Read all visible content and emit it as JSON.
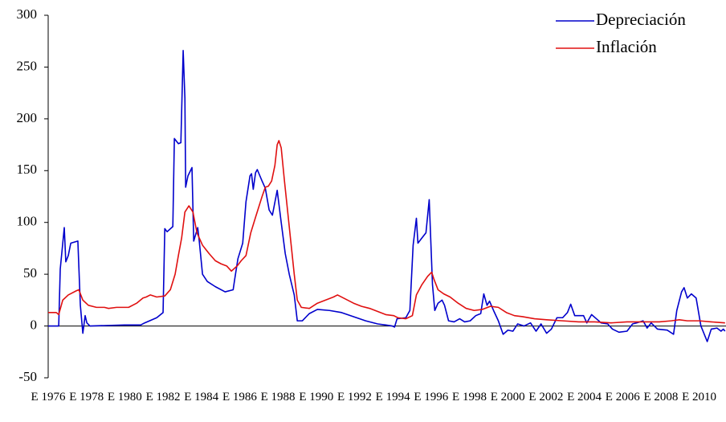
{
  "chart_data": {
    "type": "line",
    "xlim": [
      1976,
      2011.4
    ],
    "ylim": [
      -50,
      300
    ],
    "yticks": [
      -50,
      0,
      50,
      100,
      150,
      200,
      250,
      300
    ],
    "xticks": [
      {
        "value": 1976,
        "label": "E 1976"
      },
      {
        "value": 1978,
        "label": "E 1978"
      },
      {
        "value": 1980,
        "label": "E 1980"
      },
      {
        "value": 1982,
        "label": "E 1982"
      },
      {
        "value": 1984,
        "label": "E 1984"
      },
      {
        "value": 1986,
        "label": "E 1986"
      },
      {
        "value": 1988,
        "label": "E 1988"
      },
      {
        "value": 1990,
        "label": "E 1990"
      },
      {
        "value": 1992,
        "label": "E 1992"
      },
      {
        "value": 1994,
        "label": "E 1994"
      },
      {
        "value": 1996,
        "label": "E 1996"
      },
      {
        "value": 1998,
        "label": "E 1998"
      },
      {
        "value": 2000,
        "label": "E 2000"
      },
      {
        "value": 2002,
        "label": "E 2002"
      },
      {
        "value": 2004,
        "label": "E 2004"
      },
      {
        "value": 2006,
        "label": "E 2006"
      },
      {
        "value": 2008,
        "label": "E 2008"
      },
      {
        "value": 2010,
        "label": "E 2010"
      }
    ],
    "legend": "top-right",
    "series": [
      {
        "name": "Depreciación",
        "color": "#0000cc",
        "x": [
          1976.0,
          1976.55,
          1976.63,
          1976.84,
          1976.92,
          1977.05,
          1977.18,
          1977.55,
          1977.68,
          1977.81,
          1977.93,
          1978.02,
          1978.18,
          1979.99,
          1980.83,
          1981.04,
          1981.67,
          1982.0,
          1982.09,
          1982.21,
          1982.51,
          1982.59,
          1982.8,
          1982.93,
          1983.05,
          1983.14,
          1983.18,
          1983.3,
          1983.51,
          1983.6,
          1983.81,
          1983.89,
          1984.06,
          1984.31,
          1984.73,
          1985.24,
          1985.66,
          1985.74,
          1985.91,
          1986.16,
          1986.33,
          1986.54,
          1986.62,
          1986.71,
          1986.83,
          1986.92,
          1987.17,
          1987.34,
          1987.54,
          1987.71,
          1987.96,
          1988.17,
          1988.38,
          1988.59,
          1988.85,
          1989.01,
          1989.27,
          1989.64,
          1990.06,
          1990.69,
          1991.32,
          1991.95,
          1992.58,
          1993.21,
          1993.63,
          1993.97,
          1994.09,
          1994.22,
          1994.68,
          1994.89,
          1995.06,
          1995.23,
          1995.31,
          1995.52,
          1995.73,
          1995.9,
          1996.07,
          1996.19,
          1996.36,
          1996.57,
          1996.7,
          1996.91,
          1997.2,
          1997.49,
          1997.75,
          1998.04,
          1998.33,
          1998.59,
          1998.75,
          1998.92,
          1999.05,
          1999.26,
          1999.51,
          1999.76,
          2000.01,
          2000.27,
          2000.52,
          2000.85,
          2001.19,
          2001.48,
          2001.74,
          2002.03,
          2002.28,
          2002.57,
          2002.87,
          2003.12,
          2003.29,
          2003.5,
          2003.79,
          2003.96,
          2004.13,
          2004.38,
          2004.63,
          2004.88,
          2005.22,
          2005.47,
          2005.81,
          2006.23,
          2006.52,
          2006.73,
          2007.07,
          2007.28,
          2007.49,
          2007.82,
          2008.33,
          2008.66,
          2008.83,
          2009.08,
          2009.21,
          2009.38,
          2009.59,
          2009.84,
          2010.09,
          2010.42,
          2010.63,
          2010.93,
          2011.14,
          2011.26,
          2011.35
        ],
        "values": [
          0,
          0,
          55,
          95,
          62,
          68,
          80,
          82,
          20,
          -7,
          10,
          3,
          0,
          1,
          1,
          3,
          8,
          13,
          94,
          91,
          96,
          181,
          176,
          177,
          266,
          220,
          134,
          145,
          153,
          82,
          95,
          82,
          50,
          43,
          38,
          33,
          35,
          45,
          65,
          80,
          120,
          145,
          147,
          132,
          148,
          151,
          140,
          133,
          112,
          107,
          131,
          100,
          70,
          50,
          30,
          5,
          5,
          12,
          16,
          15,
          13,
          9,
          5,
          2,
          1,
          0,
          -1,
          7,
          8,
          15,
          78,
          104,
          80,
          85,
          90,
          122,
          40,
          15,
          22,
          25,
          20,
          5,
          4,
          7,
          4,
          5,
          10,
          12,
          31,
          20,
          24,
          15,
          5,
          -8,
          -4,
          -5,
          2,
          0,
          3,
          -5,
          2,
          -7,
          -3,
          8,
          8,
          13,
          21,
          10,
          10,
          10,
          3,
          11,
          7,
          3,
          2,
          -3,
          -6,
          -5,
          2,
          3,
          5,
          -2,
          3,
          -3,
          -4,
          -8,
          15,
          33,
          37,
          27,
          31,
          27,
          0,
          -15,
          -3,
          -2,
          -5,
          -3,
          -5
        ]
      },
      {
        "name": "Inflación",
        "color": "#e01010",
        "x": [
          1976.0,
          1976.42,
          1976.55,
          1976.76,
          1977.05,
          1977.47,
          1977.6,
          1977.81,
          1978.1,
          1978.52,
          1978.94,
          1979.15,
          1979.57,
          1980.2,
          1980.62,
          1980.95,
          1981.12,
          1981.33,
          1981.67,
          1982.09,
          1982.38,
          1982.63,
          1982.8,
          1982.97,
          1983.14,
          1983.35,
          1983.56,
          1983.77,
          1984.06,
          1984.4,
          1984.73,
          1985.03,
          1985.32,
          1985.57,
          1985.87,
          1986.08,
          1986.33,
          1986.58,
          1986.83,
          1987.0,
          1987.17,
          1987.34,
          1987.5,
          1987.67,
          1987.84,
          1987.96,
          1988.05,
          1988.17,
          1988.34,
          1988.51,
          1988.68,
          1988.85,
          1989.01,
          1989.22,
          1989.64,
          1990.06,
          1990.48,
          1990.9,
          1991.11,
          1991.53,
          1991.95,
          1992.37,
          1992.79,
          1993.21,
          1993.63,
          1994.05,
          1994.26,
          1994.68,
          1995.02,
          1995.23,
          1995.52,
          1995.82,
          1996.03,
          1996.15,
          1996.36,
          1996.66,
          1996.99,
          1997.41,
          1997.83,
          1998.25,
          1998.67,
          1999.09,
          1999.51,
          1999.93,
          2000.35,
          2000.77,
          2001.4,
          2002.03,
          2002.87,
          2003.71,
          2004.55,
          2005.39,
          2006.23,
          2007.07,
          2007.91,
          2008.54,
          2008.96,
          2009.38,
          2010.01,
          2010.63,
          2011.35
        ],
        "values": [
          13,
          13,
          11,
          25,
          30,
          34,
          35,
          25,
          20,
          18,
          18,
          17,
          18,
          18,
          22,
          27,
          28,
          30,
          28,
          29,
          35,
          50,
          68,
          85,
          110,
          116,
          110,
          90,
          78,
          70,
          63,
          60,
          58,
          53,
          58,
          63,
          68,
          90,
          105,
          115,
          125,
          134,
          135,
          140,
          155,
          175,
          179,
          172,
          140,
          110,
          80,
          50,
          25,
          18,
          17,
          22,
          25,
          28,
          30,
          26,
          22,
          19,
          17,
          14,
          11,
          10,
          8,
          7,
          10,
          30,
          40,
          48,
          52,
          45,
          35,
          31,
          28,
          22,
          17,
          15,
          16,
          19,
          18,
          13,
          10,
          9,
          7,
          6,
          5,
          4,
          4,
          3,
          4,
          4,
          4,
          5,
          6,
          5,
          5,
          4,
          3
        ]
      }
    ]
  }
}
